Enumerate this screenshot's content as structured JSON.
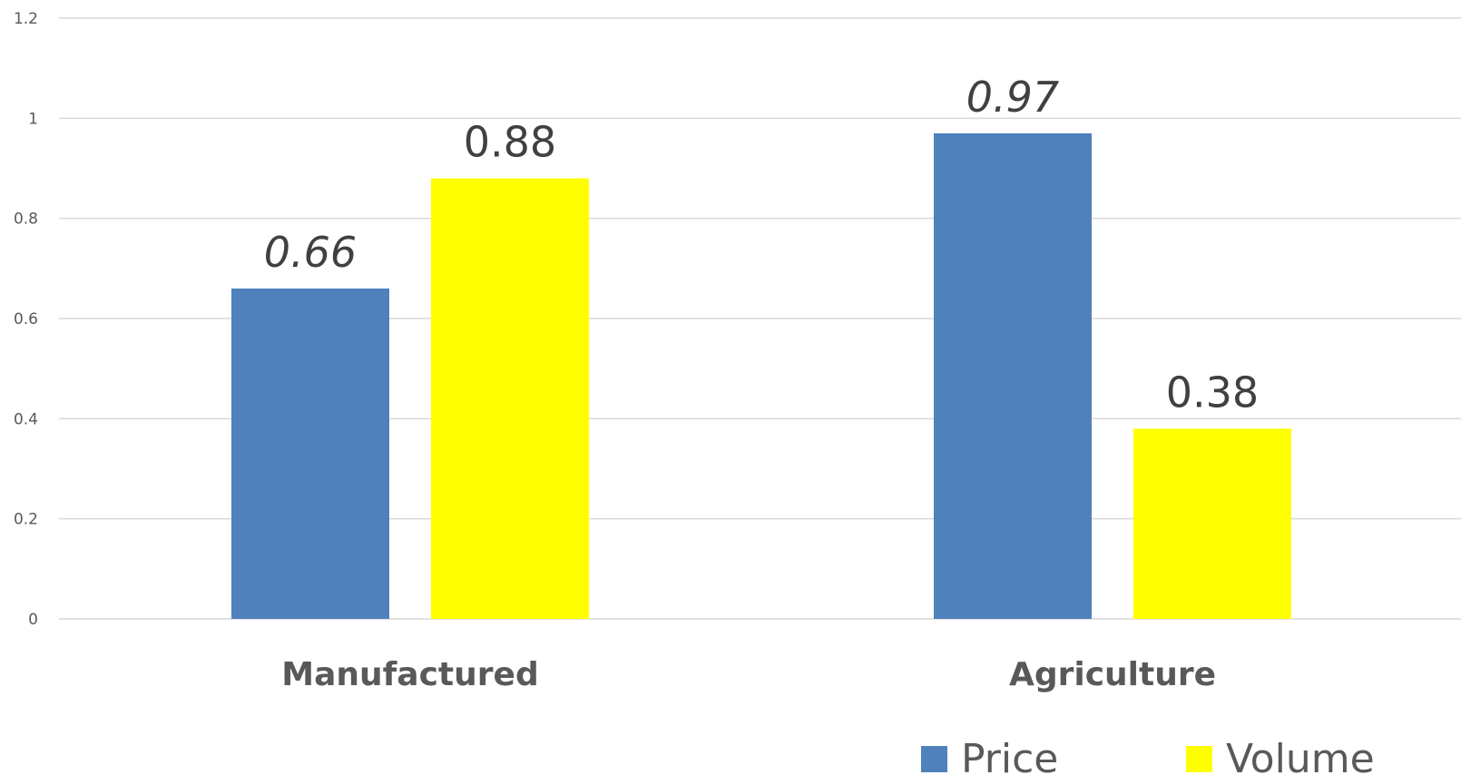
{
  "chart_data": {
    "type": "bar",
    "categories": [
      "Manufactured",
      "Agriculture"
    ],
    "series": [
      {
        "name": "Price",
        "values": [
          0.66,
          0.97
        ],
        "value_labels": [
          "0.66",
          "0.97"
        ],
        "color": "#4f81bd",
        "label_style": "italic"
      },
      {
        "name": "Volume",
        "values": [
          0.88,
          0.38
        ],
        "value_labels": [
          "0.88",
          "0.38"
        ],
        "color": "#ffff00",
        "label_style": "normal"
      }
    ],
    "yticks": [
      "0",
      "0.2",
      "0.4",
      "0.6",
      "0.8",
      "1",
      "1.2"
    ],
    "ylim": [
      0,
      1.2
    ],
    "grid": true,
    "legend_position": "bottom-right",
    "title": "",
    "xlabel": "",
    "ylabel": ""
  }
}
